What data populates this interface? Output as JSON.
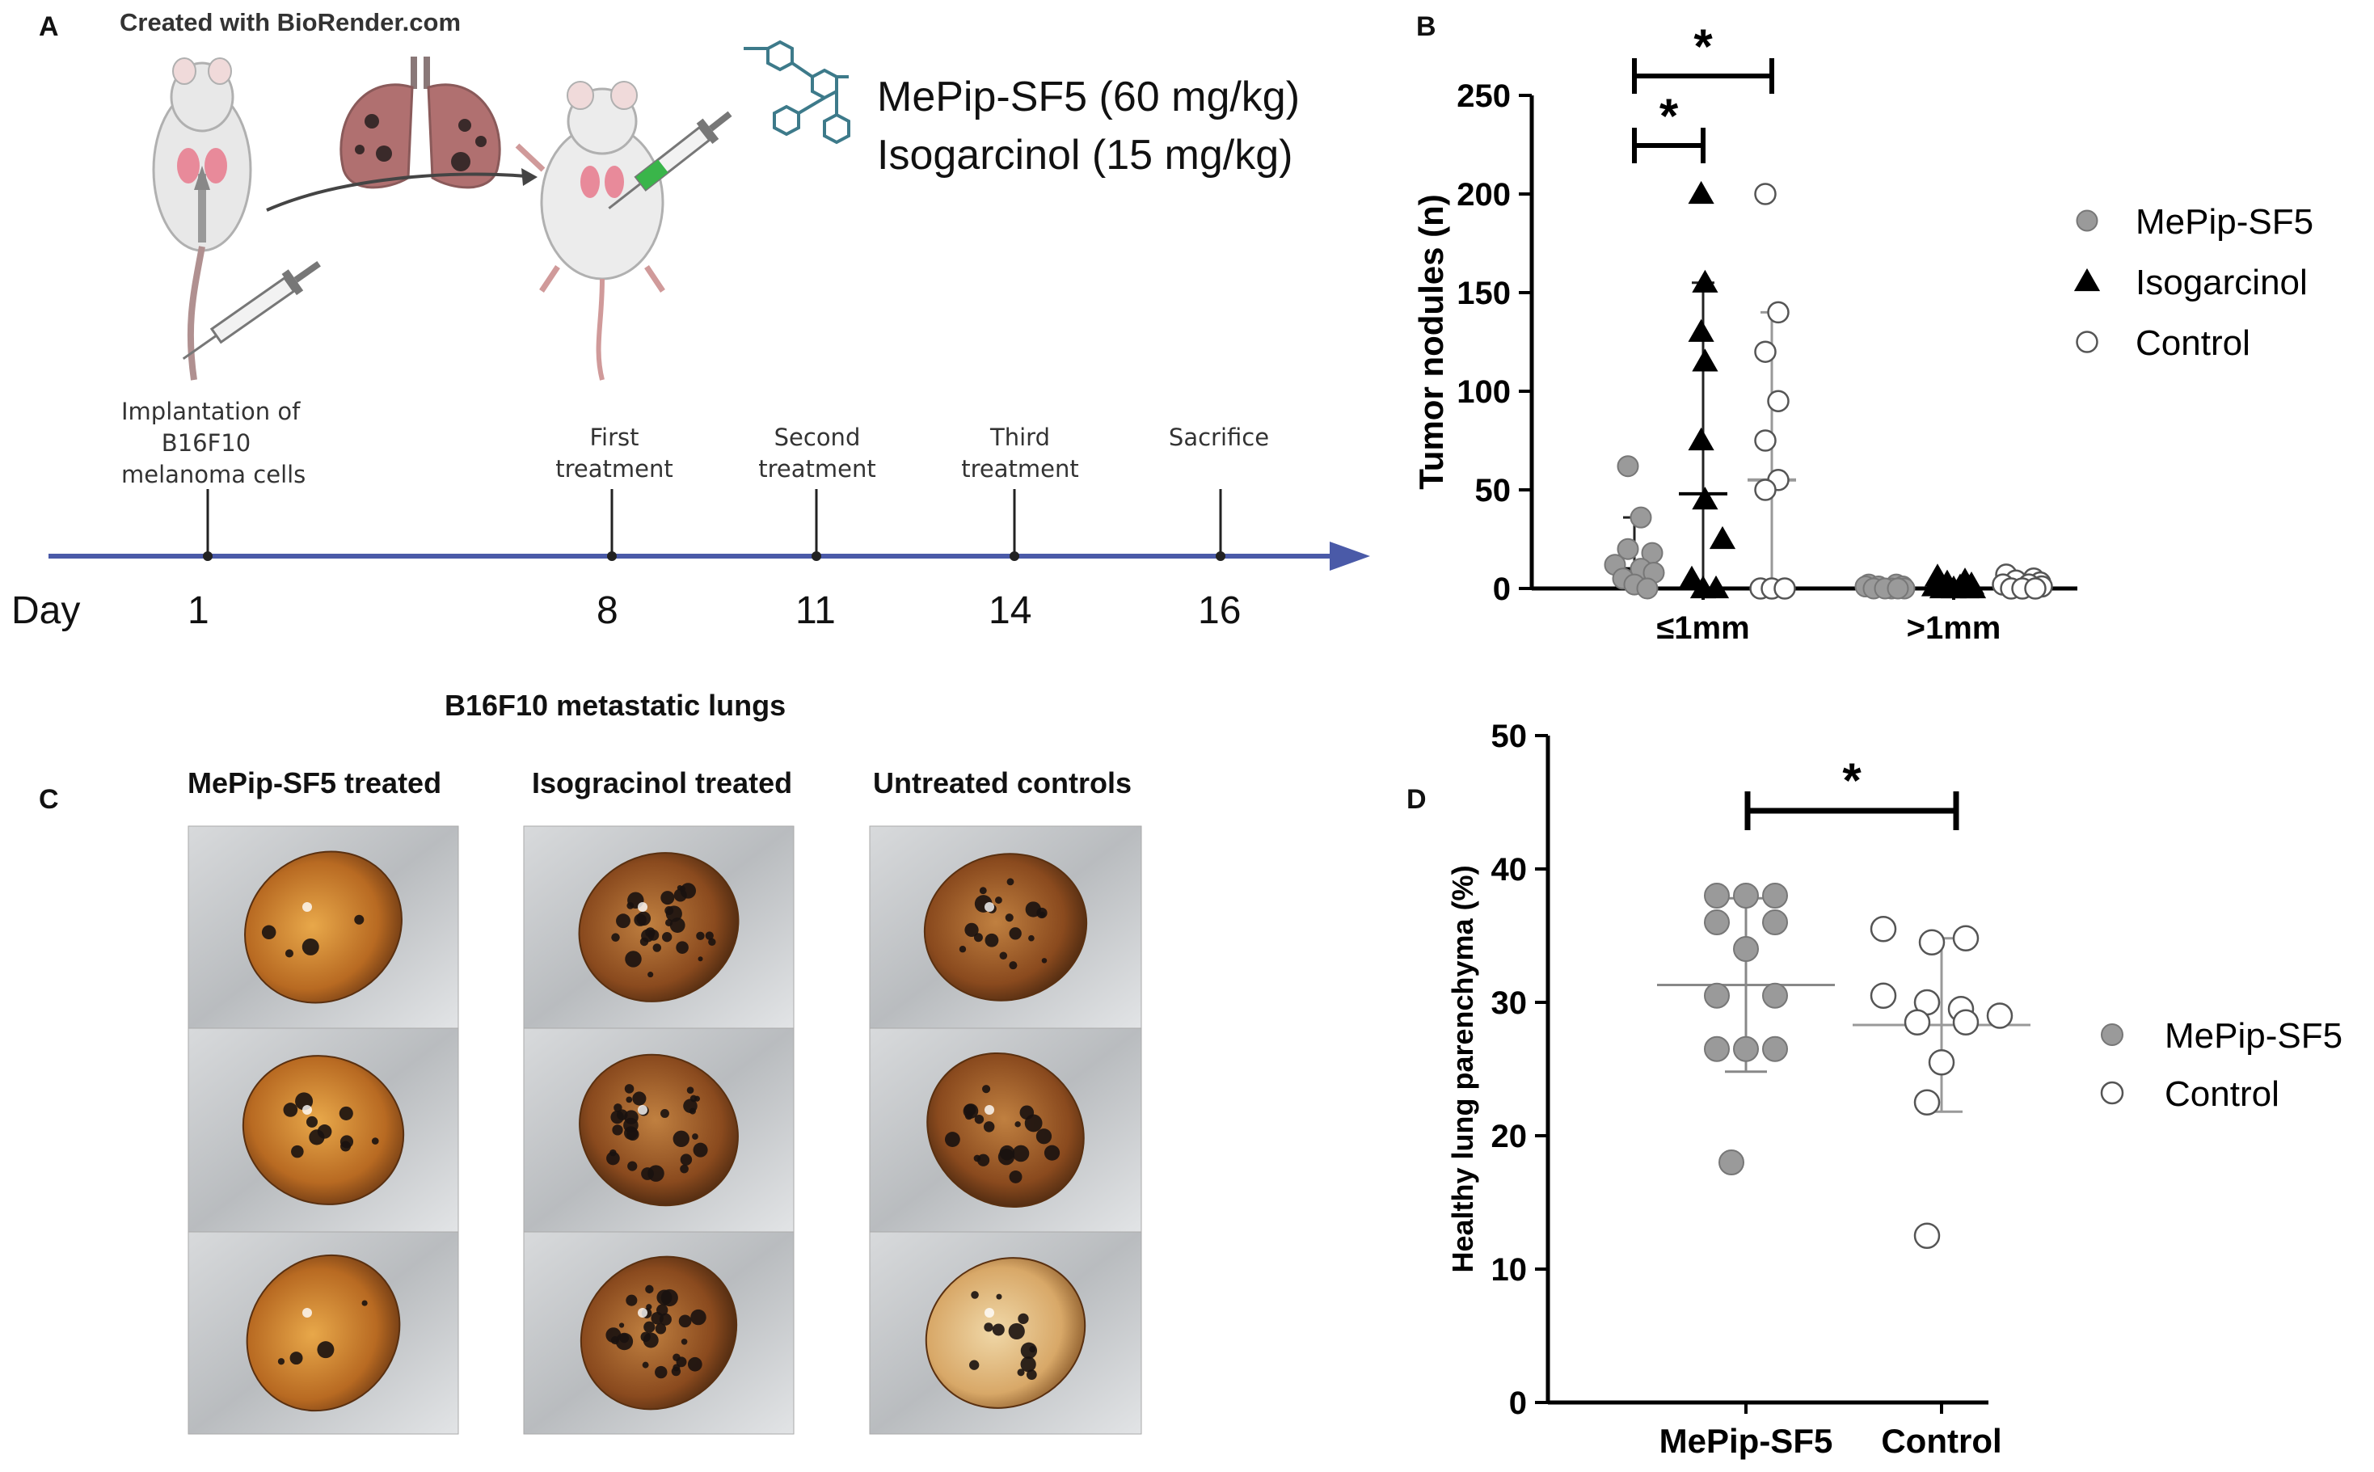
{
  "panelA": {
    "label": "A",
    "credit": "Created with BioRender.com",
    "drugs": [
      "MePip-SF5 (60 mg/kg)",
      "Isogarcinol (15 mg/kg)"
    ],
    "timeline": {
      "day_label": "Day",
      "events": [
        {
          "day": "1",
          "label": [
            "Implantation of",
            "B16F10",
            "melanoma cells"
          ]
        },
        {
          "day": "8",
          "label": [
            "First",
            "treatment"
          ]
        },
        {
          "day": "11",
          "label": [
            "Second",
            "treatment"
          ]
        },
        {
          "day": "14",
          "label": [
            "Third",
            "treatment"
          ]
        },
        {
          "day": "16",
          "label": [
            "Sacrifice"
          ]
        }
      ],
      "axis_color": "#4a5aa8"
    }
  },
  "panelC": {
    "label": "C",
    "title": "B16F10 metastatic lungs",
    "columns": [
      "MePip-SF5 treated",
      "Isogracinol treated",
      "Untreated controls"
    ]
  },
  "chart_data": [
    {
      "panel": "B",
      "type": "scatter",
      "ylabel": "Tumor nodules (n)",
      "ylim": [
        0,
        250
      ],
      "yticks": [
        0,
        50,
        100,
        150,
        200,
        250
      ],
      "categories": [
        "≤1mm",
        ">1mm"
      ],
      "legend_position": "right",
      "series": [
        {
          "name": "MePip-SF5",
          "marker": "circle-filled",
          "color": "#9a9a9a",
          "values": [
            [
              62,
              36,
              20,
              18,
              12,
              10,
              8,
              5,
              2,
              0
            ],
            [
              2,
              2,
              1,
              1,
              1,
              0,
              0,
              0,
              0,
              0
            ]
          ],
          "mean": [
            10,
            0
          ],
          "sd_upper": [
            36,
            0
          ]
        },
        {
          "name": "Isogarcinol",
          "marker": "triangle-filled",
          "color": "#000000",
          "values": [
            [
              200,
              155,
              130,
              115,
              75,
              45,
              25,
              5,
              0,
              0
            ],
            [
              6,
              4,
              3,
              2,
              1,
              1,
              0,
              0,
              0,
              0
            ]
          ],
          "mean": [
            48,
            2
          ],
          "sd_upper": [
            155,
            5
          ]
        },
        {
          "name": "Control",
          "marker": "circle-open",
          "color": "#ffffff",
          "values": [
            [
              200,
              140,
              120,
              95,
              75,
              55,
              50,
              0,
              0,
              0
            ],
            [
              7,
              5,
              4,
              3,
              2,
              2,
              1,
              0,
              0,
              0
            ]
          ],
          "mean": [
            55,
            2
          ],
          "sd_upper": [
            140,
            5
          ]
        }
      ],
      "significance": [
        {
          "label": "*",
          "from": "MePip-SF5",
          "to": "Control"
        },
        {
          "label": "*",
          "from": "MePip-SF5",
          "to": "Isogarcinol"
        }
      ]
    },
    {
      "panel": "D",
      "type": "scatter",
      "ylabel": "Healthy lung parenchyma (%)",
      "ylim": [
        0,
        50
      ],
      "yticks": [
        0,
        10,
        20,
        30,
        40,
        50
      ],
      "categories": [
        "MePip-SF5",
        "Control"
      ],
      "legend_position": "right",
      "series": [
        {
          "name": "MePip-SF5",
          "marker": "circle-filled",
          "color": "#9a9a9a",
          "points": [
            [
              -0.6,
              38
            ],
            [
              0,
              38
            ],
            [
              0.6,
              38
            ],
            [
              -0.6,
              36
            ],
            [
              0.6,
              36
            ],
            [
              0,
              34
            ],
            [
              -0.6,
              30.5
            ],
            [
              0.6,
              30.5
            ],
            [
              -0.6,
              26.5
            ],
            [
              0,
              26.5
            ],
            [
              0.6,
              26.5
            ],
            [
              -0.3,
              18
            ]
          ],
          "mean": 31.3,
          "sd": [
            24.8,
            37.8
          ]
        },
        {
          "name": "Control",
          "marker": "circle-open",
          "color": "#ffffff",
          "points": [
            [
              -1.2,
              35.5
            ],
            [
              -0.2,
              34.5
            ],
            [
              0.5,
              34.8
            ],
            [
              -1.2,
              30.5
            ],
            [
              -0.3,
              30
            ],
            [
              0.4,
              29.5
            ],
            [
              1.2,
              29
            ],
            [
              -0.5,
              28.5
            ],
            [
              0.5,
              28.5
            ],
            [
              0,
              25.5
            ],
            [
              -0.3,
              22.5
            ],
            [
              -0.3,
              12.5
            ]
          ],
          "mean": 28.3,
          "sd": [
            21.8,
            34.8
          ]
        }
      ],
      "significance": [
        {
          "label": "*",
          "from": "MePip-SF5",
          "to": "Control"
        }
      ]
    }
  ]
}
